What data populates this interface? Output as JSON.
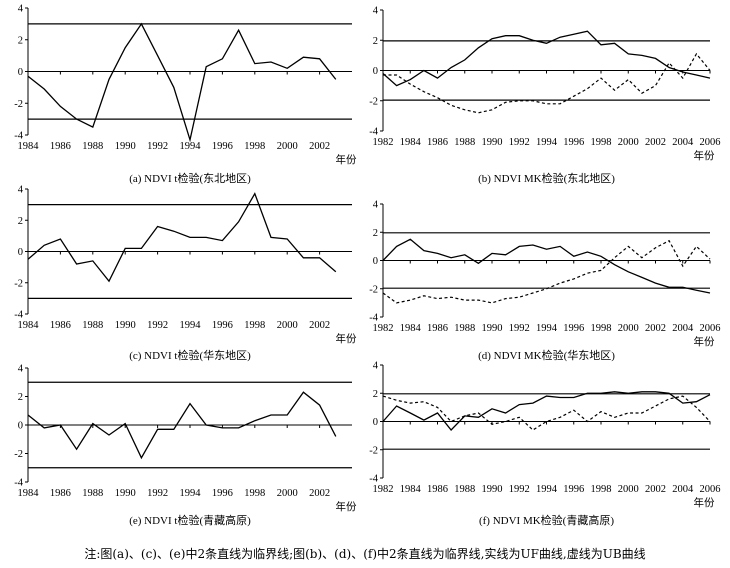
{
  "chart_data": [
    {
      "type": "line",
      "caption": "(a) NDVI t检验(东北地区)",
      "unit_label": "年份",
      "x_ticks": [
        1984,
        1986,
        1988,
        1990,
        1992,
        1994,
        1996,
        1998,
        2000,
        2002
      ],
      "xlim": [
        1984,
        2004
      ],
      "y_ticks": [
        -4,
        -2,
        0,
        2,
        4
      ],
      "ylim": [
        -4,
        4
      ],
      "critical_lines": [
        3,
        -3
      ],
      "series": [
        {
          "style": "solid",
          "x": [
            1984,
            1985,
            1986,
            1987,
            1988,
            1989,
            1990,
            1991,
            1992,
            1993,
            1994,
            1995,
            1996,
            1997,
            1998,
            1999,
            2000,
            2001,
            2002,
            2003
          ],
          "y": [
            -0.3,
            -1.1,
            -2.2,
            -3.0,
            -3.5,
            -0.5,
            1.5,
            3.0,
            1.0,
            -1.0,
            -4.3,
            0.3,
            0.8,
            2.6,
            0.5,
            0.6,
            0.2,
            0.9,
            0.8,
            -0.5
          ]
        }
      ]
    },
    {
      "type": "line",
      "caption": "(b) NDVI MK检验(东北地区)",
      "unit_label": "年份",
      "x_ticks": [
        1982,
        1984,
        1986,
        1988,
        1990,
        1992,
        1994,
        1996,
        1998,
        2000,
        2002,
        2004,
        2006
      ],
      "xlim": [
        1982,
        2006
      ],
      "y_ticks": [
        -4,
        -2,
        0,
        2,
        4
      ],
      "ylim": [
        -4,
        4
      ],
      "critical_lines": [
        1.96,
        -1.96
      ],
      "series": [
        {
          "style": "solid",
          "x": [
            1982,
            1983,
            1984,
            1985,
            1986,
            1987,
            1988,
            1989,
            1990,
            1991,
            1992,
            1993,
            1994,
            1995,
            1996,
            1997,
            1998,
            1999,
            2000,
            2001,
            2002,
            2003,
            2004,
            2005,
            2006
          ],
          "y": [
            -0.2,
            -1.0,
            -0.6,
            0.0,
            -0.5,
            0.2,
            0.7,
            1.5,
            2.1,
            2.3,
            2.3,
            2.0,
            1.8,
            2.2,
            2.4,
            2.6,
            1.7,
            1.8,
            1.1,
            1.0,
            0.8,
            0.2,
            -0.1,
            -0.3,
            -0.5
          ]
        },
        {
          "style": "dashed",
          "x": [
            1982,
            1983,
            1984,
            1985,
            1986,
            1987,
            1988,
            1989,
            1990,
            1991,
            1992,
            1993,
            1994,
            1995,
            1996,
            1997,
            1998,
            1999,
            2000,
            2001,
            2002,
            2003,
            2004,
            2005,
            2006
          ],
          "y": [
            -0.3,
            -0.3,
            -0.9,
            -1.4,
            -1.8,
            -2.3,
            -2.6,
            -2.8,
            -2.6,
            -2.1,
            -2.0,
            -2.0,
            -2.2,
            -2.2,
            -1.7,
            -1.2,
            -0.5,
            -1.3,
            -0.6,
            -1.5,
            -1.0,
            0.5,
            -0.5,
            1.1,
            0.0
          ]
        }
      ]
    },
    {
      "type": "line",
      "caption": "(c) NDVI t检验(华东地区)",
      "unit_label": "年份",
      "x_ticks": [
        1984,
        1986,
        1988,
        1990,
        1992,
        1994,
        1996,
        1998,
        2000,
        2002
      ],
      "xlim": [
        1984,
        2004
      ],
      "y_ticks": [
        -4,
        -2,
        0,
        2,
        4
      ],
      "ylim": [
        -4,
        4
      ],
      "critical_lines": [
        3,
        -3
      ],
      "series": [
        {
          "style": "solid",
          "x": [
            1984,
            1985,
            1986,
            1987,
            1988,
            1989,
            1990,
            1991,
            1992,
            1993,
            1994,
            1995,
            1996,
            1997,
            1998,
            1999,
            2000,
            2001,
            2002,
            2003
          ],
          "y": [
            -0.5,
            0.4,
            0.8,
            -0.8,
            -0.6,
            -1.9,
            0.2,
            0.2,
            1.6,
            1.3,
            0.9,
            0.9,
            0.7,
            1.9,
            3.7,
            0.9,
            0.8,
            -0.4,
            -0.4,
            -1.3
          ]
        }
      ]
    },
    {
      "type": "line",
      "caption": "(d) NDVI MK检验(华东地区)",
      "unit_label": "年份",
      "x_ticks": [
        1982,
        1984,
        1986,
        1988,
        1990,
        1992,
        1994,
        1996,
        1998,
        2000,
        2002,
        2004,
        2006
      ],
      "xlim": [
        1982,
        2006
      ],
      "y_ticks": [
        -4,
        -2,
        0,
        2,
        4
      ],
      "ylim": [
        -4,
        4
      ],
      "critical_lines": [
        1.96,
        -1.96
      ],
      "series": [
        {
          "style": "solid",
          "x": [
            1982,
            1983,
            1984,
            1985,
            1986,
            1987,
            1988,
            1989,
            1990,
            1991,
            1992,
            1993,
            1994,
            1995,
            1996,
            1997,
            1998,
            1999,
            2000,
            2001,
            2002,
            2003,
            2004,
            2005,
            2006
          ],
          "y": [
            0.0,
            1.0,
            1.5,
            0.7,
            0.5,
            0.2,
            0.4,
            -0.2,
            0.5,
            0.4,
            1.0,
            1.1,
            0.8,
            1.0,
            0.3,
            0.6,
            0.3,
            -0.3,
            -0.8,
            -1.2,
            -1.6,
            -1.9,
            -1.9,
            -2.1,
            -2.3
          ]
        },
        {
          "style": "dashed",
          "x": [
            1982,
            1983,
            1984,
            1985,
            1986,
            1987,
            1988,
            1989,
            1990,
            1991,
            1992,
            1993,
            1994,
            1995,
            1996,
            1997,
            1998,
            1999,
            2000,
            2001,
            2002,
            2003,
            2004,
            2005,
            2006
          ],
          "y": [
            -2.3,
            -3.0,
            -2.8,
            -2.5,
            -2.7,
            -2.6,
            -2.8,
            -2.8,
            -3.0,
            -2.7,
            -2.6,
            -2.3,
            -2.0,
            -1.6,
            -1.3,
            -0.9,
            -0.7,
            0.2,
            1.0,
            0.2,
            0.9,
            1.4,
            -0.4,
            1.0,
            0.1
          ]
        }
      ]
    },
    {
      "type": "line",
      "caption": "(e) NDVI t检验(青藏高原)",
      "unit_label": "年份",
      "x_ticks": [
        1984,
        1986,
        1988,
        1990,
        1992,
        1994,
        1996,
        1998,
        2000,
        2002
      ],
      "xlim": [
        1984,
        2004
      ],
      "y_ticks": [
        -4,
        -2,
        0,
        2,
        4
      ],
      "ylim": [
        -4,
        4
      ],
      "critical_lines": [
        3,
        -3
      ],
      "series": [
        {
          "style": "solid",
          "x": [
            1984,
            1985,
            1986,
            1987,
            1988,
            1989,
            1990,
            1991,
            1992,
            1993,
            1994,
            1995,
            1996,
            1997,
            1998,
            1999,
            2000,
            2001,
            2002,
            2003
          ],
          "y": [
            0.7,
            -0.2,
            0.0,
            -1.7,
            0.1,
            -0.7,
            0.1,
            -2.3,
            -0.3,
            -0.3,
            1.5,
            0.0,
            -0.2,
            -0.2,
            0.3,
            0.7,
            0.7,
            2.3,
            1.4,
            -0.8
          ]
        }
      ]
    },
    {
      "type": "line",
      "caption": "(f) NDVI MK检验(青藏高原)",
      "unit_label": "年份",
      "x_ticks": [
        1982,
        1984,
        1986,
        1988,
        1990,
        1992,
        1994,
        1996,
        1998,
        2000,
        2002,
        2004,
        2006
      ],
      "xlim": [
        1982,
        2006
      ],
      "y_ticks": [
        -4,
        -2,
        0,
        2,
        4
      ],
      "ylim": [
        -4,
        4
      ],
      "critical_lines": [
        1.96,
        -1.96
      ],
      "series": [
        {
          "style": "solid",
          "x": [
            1982,
            1983,
            1984,
            1985,
            1986,
            1987,
            1988,
            1989,
            1990,
            1991,
            1992,
            1993,
            1994,
            1995,
            1996,
            1997,
            1998,
            1999,
            2000,
            2001,
            2002,
            2003,
            2004,
            2005,
            2006
          ],
          "y": [
            0.0,
            1.1,
            0.6,
            0.1,
            0.6,
            -0.6,
            0.4,
            0.3,
            0.9,
            0.6,
            1.2,
            1.3,
            1.8,
            1.7,
            1.7,
            2.0,
            2.0,
            2.1,
            2.0,
            2.1,
            2.1,
            2.0,
            1.3,
            1.4,
            1.9
          ]
        },
        {
          "style": "dashed",
          "x": [
            1982,
            1983,
            1984,
            1985,
            1986,
            1987,
            1988,
            1989,
            1990,
            1991,
            1992,
            1993,
            1994,
            1995,
            1996,
            1997,
            1998,
            1999,
            2000,
            2001,
            2002,
            2003,
            2004,
            2005,
            2006
          ],
          "y": [
            1.8,
            1.5,
            1.3,
            1.4,
            1.0,
            0.0,
            0.4,
            0.6,
            -0.2,
            0.0,
            0.3,
            -0.6,
            0.0,
            0.3,
            0.8,
            0.0,
            0.7,
            0.3,
            0.6,
            0.6,
            1.1,
            1.6,
            1.8,
            1.0,
            0.0
          ]
        }
      ]
    }
  ],
  "note": "注:图(a)、(c)、(e)中2条直线为临界线;图(b)、(d)、(f)中2条直线为临界线,实线为UF曲线,虚线为UB曲线"
}
